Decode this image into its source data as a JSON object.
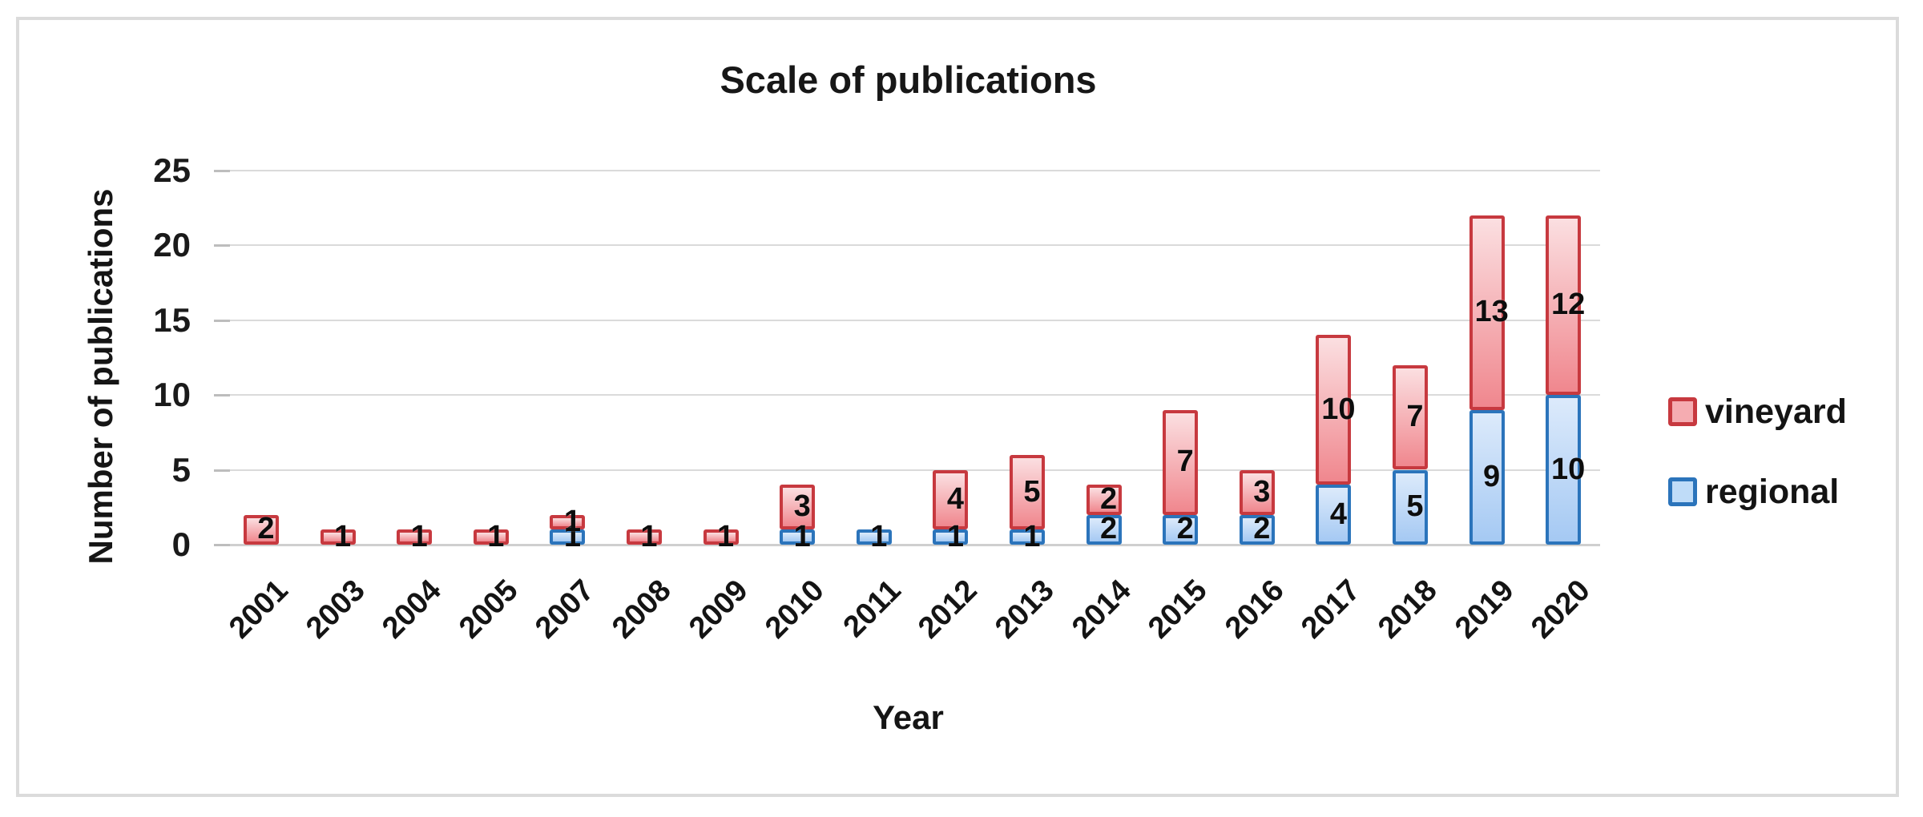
{
  "figure": {
    "background": "#ffffff",
    "border_color": "#dbdbdb"
  },
  "chart_data": {
    "type": "bar",
    "stacked": true,
    "title": "Scale of publications",
    "xlabel": "Year",
    "ylabel": "Number of publications",
    "ylim": [
      0,
      25
    ],
    "yticks": [
      0,
      5,
      10,
      15,
      20,
      25
    ],
    "grid": true,
    "data_labels": true,
    "legend_position": "right",
    "legend": [
      "vineyard",
      "regional"
    ],
    "categories": [
      "2001",
      "2003",
      "2004",
      "2005",
      "2007",
      "2008",
      "2009",
      "2010",
      "2011",
      "2012",
      "2013",
      "2014",
      "2015",
      "2016",
      "2017",
      "2018",
      "2019",
      "2020"
    ],
    "series": [
      {
        "name": "regional",
        "values": [
          0,
          0,
          0,
          0,
          1,
          0,
          0,
          1,
          1,
          1,
          1,
          2,
          2,
          2,
          4,
          5,
          9,
          10
        ],
        "border_color": "#2b74bb",
        "fill_top": "#dceafb",
        "fill_bottom": "#a5c9f3",
        "legend_fill": "#bfdcf8"
      },
      {
        "name": "vineyard",
        "values": [
          2,
          1,
          1,
          1,
          1,
          1,
          1,
          3,
          0,
          4,
          5,
          2,
          7,
          3,
          10,
          7,
          13,
          12
        ],
        "border_color": "#c7393f",
        "fill_top": "#fbdfe1",
        "fill_bottom": "#f0878e",
        "legend_fill": "#f5acb1"
      }
    ],
    "totals": [
      2,
      1,
      1,
      1,
      2,
      1,
      1,
      4,
      1,
      5,
      6,
      4,
      9,
      5,
      14,
      12,
      22,
      22
    ],
    "gridline_color": "#dadada",
    "axis_text_color": "#1c1c1c"
  }
}
